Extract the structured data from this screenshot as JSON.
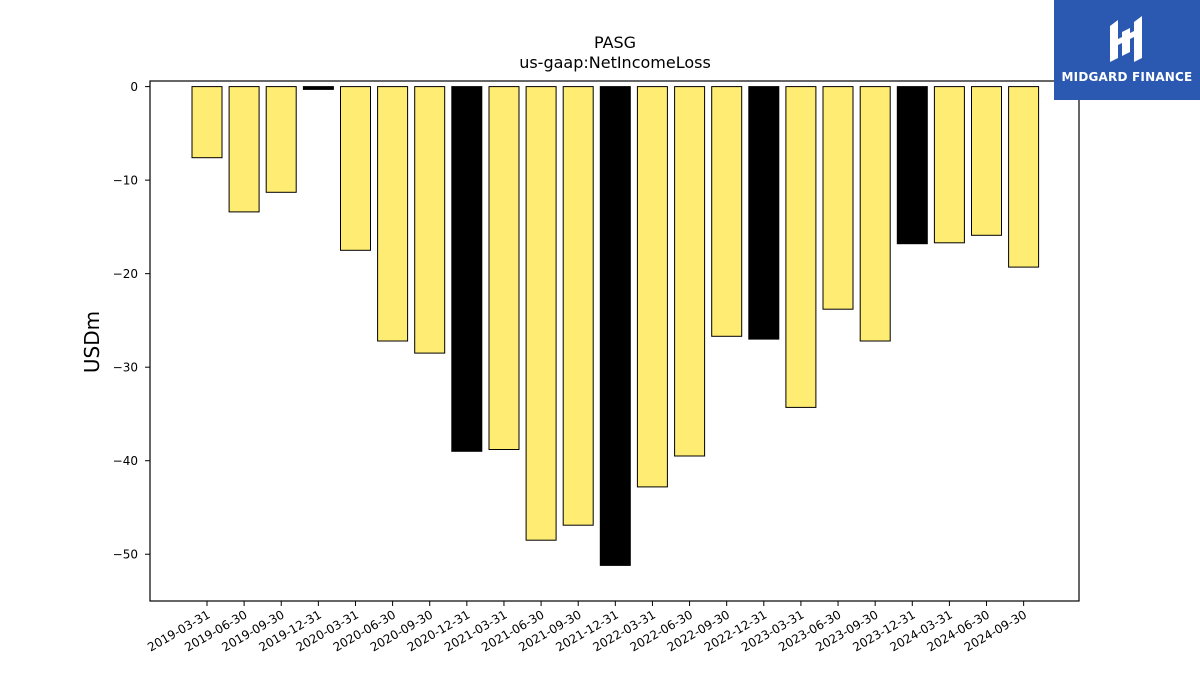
{
  "brand": {
    "name": "MIDGARD FINANCE",
    "logo_color": "#2b59b1"
  },
  "colors": {
    "bar_default": "#ffec73",
    "bar_q4": "#000000",
    "axis": "#000000"
  },
  "chart_data": {
    "type": "bar",
    "title": "PASG",
    "subtitle": "us-gaap:NetIncomeLoss",
    "xlabel": "",
    "ylabel": "USDm",
    "ylim": [
      -55,
      0.6
    ],
    "yticks": [
      0,
      -10,
      -20,
      -30,
      -40,
      -50
    ],
    "grid": false,
    "categories": [
      "2019-03-31",
      "2019-06-30",
      "2019-09-30",
      "2019-12-31",
      "2020-03-31",
      "2020-06-30",
      "2020-09-30",
      "2020-12-31",
      "2021-03-31",
      "2021-06-30",
      "2021-09-30",
      "2021-12-31",
      "2022-03-31",
      "2022-06-30",
      "2022-09-30",
      "2022-12-31",
      "2023-03-31",
      "2023-06-30",
      "2023-09-30",
      "2023-12-31",
      "2024-03-31",
      "2024-06-30",
      "2024-09-30"
    ],
    "values": [
      -7.6,
      -13.4,
      -11.3,
      -0.3,
      -17.5,
      -27.2,
      -28.5,
      -39.0,
      -38.8,
      -48.5,
      -46.9,
      -51.2,
      -42.8,
      -39.5,
      -26.7,
      -27.0,
      -34.3,
      -23.8,
      -27.2,
      -16.8,
      -16.7,
      -15.9,
      -19.3
    ],
    "highlight": [
      false,
      false,
      false,
      true,
      false,
      false,
      false,
      true,
      false,
      false,
      false,
      true,
      false,
      false,
      false,
      true,
      false,
      false,
      false,
      true,
      false,
      false,
      false
    ]
  }
}
